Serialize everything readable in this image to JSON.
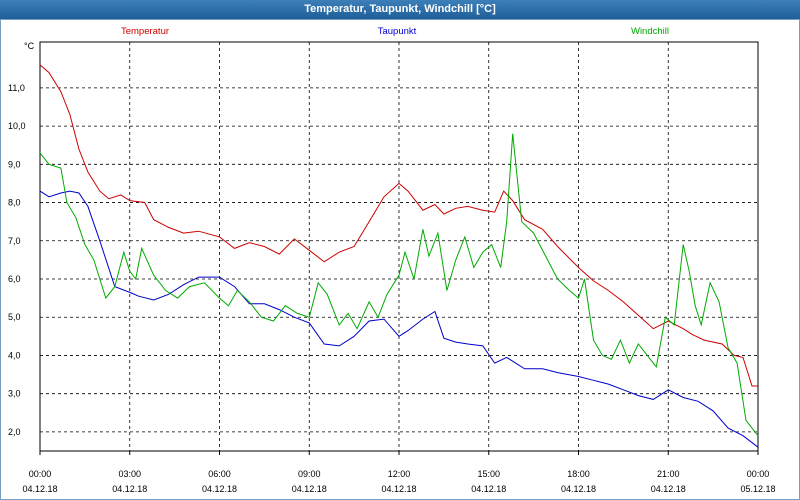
{
  "window": {
    "title": "Temperatur, Taupunkt, Windchill [°C]"
  },
  "chart_data": {
    "type": "line",
    "title": "Temperatur, Taupunkt, Windchill [°C]",
    "ylabel": "°C",
    "xlabel": "",
    "ylim": [
      1.5,
      12.2
    ],
    "xlim": [
      0,
      24
    ],
    "grid": true,
    "y_ticks": [
      2.0,
      3.0,
      4.0,
      5.0,
      6.0,
      7.0,
      8.0,
      9.0,
      10.0,
      11.0
    ],
    "y_tick_labels": [
      "2,0",
      "3,0",
      "4,0",
      "5,0",
      "6,0",
      "7,0",
      "8,0",
      "9,0",
      "10,0",
      "11,0"
    ],
    "x_ticks": [
      0,
      3,
      6,
      9,
      12,
      15,
      18,
      21,
      24
    ],
    "x_tick_times": [
      "00:00",
      "03:00",
      "06:00",
      "09:00",
      "12:00",
      "15:00",
      "18:00",
      "21:00",
      "00:00"
    ],
    "x_tick_dates": [
      "04.12.18",
      "04.12.18",
      "04.12.18",
      "04.12.18",
      "04.12.18",
      "04.12.18",
      "04.12.18",
      "04.12.18",
      "05.12.18"
    ],
    "series": [
      {
        "name": "Temperatur",
        "color": "#cc0000",
        "x": [
          0,
          0.3,
          0.7,
          1.0,
          1.3,
          1.6,
          2.0,
          2.3,
          2.7,
          3.0,
          3.5,
          3.8,
          4.3,
          4.8,
          5.3,
          6.0,
          6.5,
          7.0,
          7.5,
          8.0,
          8.5,
          9.0,
          9.5,
          10.0,
          10.5,
          11.0,
          11.5,
          12.0,
          12.3,
          12.8,
          13.2,
          13.5,
          13.9,
          14.3,
          14.8,
          15.2,
          15.5,
          15.8,
          16.2,
          16.8,
          17.3,
          18.0,
          18.5,
          19.0,
          19.5,
          20.0,
          20.5,
          21.0,
          21.5,
          21.8,
          22.2,
          22.8,
          23.2,
          23.5,
          23.8,
          24.0
        ],
        "values": [
          11.6,
          11.4,
          10.9,
          10.3,
          9.4,
          8.8,
          8.3,
          8.1,
          8.2,
          8.05,
          8.0,
          7.55,
          7.35,
          7.2,
          7.25,
          7.1,
          6.8,
          6.95,
          6.85,
          6.65,
          7.05,
          6.75,
          6.45,
          6.7,
          6.85,
          7.5,
          8.15,
          8.5,
          8.3,
          7.8,
          7.95,
          7.7,
          7.85,
          7.9,
          7.8,
          7.75,
          8.3,
          8.05,
          7.55,
          7.3,
          6.85,
          6.3,
          5.95,
          5.7,
          5.4,
          5.05,
          4.7,
          4.9,
          4.7,
          4.55,
          4.4,
          4.3,
          4.0,
          3.95,
          3.2,
          3.2
        ]
      },
      {
        "name": "Taupunkt",
        "color": "#0000cc",
        "x": [
          0,
          0.3,
          0.7,
          1.0,
          1.3,
          1.6,
          2.0,
          2.5,
          3.0,
          3.3,
          3.8,
          4.3,
          4.8,
          5.3,
          6.0,
          6.5,
          7.0,
          7.5,
          8.0,
          8.5,
          9.0,
          9.5,
          10.0,
          10.5,
          11.0,
          11.5,
          12.0,
          12.3,
          12.8,
          13.2,
          13.5,
          13.9,
          14.3,
          14.8,
          15.2,
          15.6,
          16.2,
          16.8,
          17.3,
          18.0,
          18.5,
          19.0,
          19.5,
          20.0,
          20.5,
          21.0,
          21.5,
          22.0,
          22.5,
          23.0,
          23.5,
          24.0
        ],
        "values": [
          8.3,
          8.15,
          8.25,
          8.3,
          8.25,
          7.9,
          7.0,
          5.8,
          5.65,
          5.55,
          5.45,
          5.6,
          5.85,
          6.05,
          6.05,
          5.8,
          5.35,
          5.35,
          5.2,
          5.0,
          4.85,
          4.3,
          4.25,
          4.5,
          4.9,
          4.95,
          4.5,
          4.65,
          4.95,
          5.15,
          4.45,
          4.35,
          4.3,
          4.25,
          3.8,
          3.95,
          3.65,
          3.65,
          3.55,
          3.45,
          3.35,
          3.25,
          3.1,
          2.95,
          2.85,
          3.1,
          2.9,
          2.8,
          2.55,
          2.1,
          1.9,
          1.6
        ]
      },
      {
        "name": "Windchill",
        "color": "#00aa00",
        "x": [
          0,
          0.3,
          0.7,
          0.9,
          1.2,
          1.5,
          1.8,
          2.2,
          2.5,
          2.8,
          3.0,
          3.2,
          3.4,
          3.8,
          4.2,
          4.6,
          5.0,
          5.5,
          6.0,
          6.3,
          6.6,
          7.0,
          7.4,
          7.8,
          8.2,
          8.6,
          9.0,
          9.3,
          9.6,
          10.0,
          10.3,
          10.6,
          11.0,
          11.3,
          11.6,
          12.0,
          12.2,
          12.5,
          12.8,
          13.0,
          13.3,
          13.6,
          13.9,
          14.2,
          14.5,
          14.8,
          15.1,
          15.4,
          15.6,
          15.8,
          16.1,
          16.5,
          16.9,
          17.3,
          17.7,
          18.0,
          18.2,
          18.5,
          18.8,
          19.1,
          19.4,
          19.7,
          20.0,
          20.3,
          20.6,
          20.9,
          21.2,
          21.5,
          21.7,
          21.9,
          22.1,
          22.4,
          22.7,
          23.0,
          23.3,
          23.6,
          23.8,
          24.0
        ],
        "values": [
          9.3,
          9.0,
          8.9,
          8.0,
          7.6,
          6.9,
          6.5,
          5.5,
          5.8,
          6.7,
          6.2,
          6.0,
          6.8,
          6.1,
          5.7,
          5.5,
          5.8,
          5.9,
          5.5,
          5.3,
          5.7,
          5.4,
          5.0,
          4.9,
          5.3,
          5.1,
          5.0,
          5.9,
          5.6,
          4.8,
          5.1,
          4.7,
          5.4,
          5.0,
          5.6,
          6.1,
          6.7,
          6.0,
          7.3,
          6.6,
          7.2,
          5.7,
          6.5,
          7.1,
          6.3,
          6.7,
          6.9,
          6.3,
          7.5,
          9.8,
          7.5,
          7.2,
          6.6,
          6.0,
          5.7,
          5.5,
          6.0,
          4.4,
          4.0,
          3.9,
          4.4,
          3.8,
          4.3,
          4.0,
          3.7,
          5.0,
          4.8,
          6.9,
          6.2,
          5.3,
          4.8,
          5.9,
          5.4,
          4.2,
          3.8,
          2.3,
          2.1,
          1.9
        ]
      }
    ]
  }
}
